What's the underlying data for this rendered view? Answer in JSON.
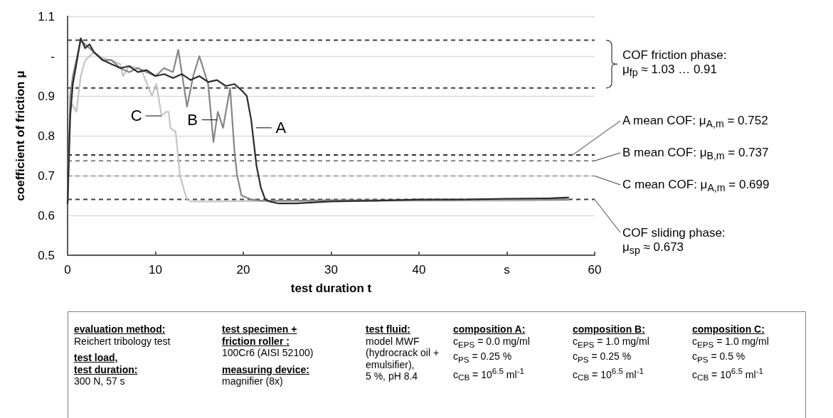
{
  "chart_data": {
    "type": "line",
    "xlabel": "test duration t",
    "ylabel": "coefficient of friction μ",
    "xlim": [
      0,
      60
    ],
    "xticks": [
      0,
      10,
      20,
      30,
      40,
      {
        "value": 50,
        "label": "s"
      },
      60
    ],
    "ylim": [
      0.5,
      1.1
    ],
    "yticks": [
      0.5,
      0.6,
      0.7,
      0.8,
      0.9,
      {
        "value": 1.0,
        "label": "-"
      },
      1.1
    ],
    "grid": "y",
    "legend": false,
    "marker": "none",
    "line_style": "solid",
    "series": [
      {
        "color": "#2b2b2b",
        "x": [
          0,
          0.3,
          0.6,
          1,
          1.5,
          2,
          2.5,
          3,
          4,
          5,
          6,
          7,
          8,
          9,
          10,
          11,
          12,
          13,
          14,
          15,
          16,
          17,
          18,
          19,
          19.5,
          20,
          20.4,
          20.9,
          21.5,
          22,
          22.5,
          23,
          24,
          26,
          30,
          35,
          40,
          45,
          50,
          55,
          57
        ],
        "values": [
          0.63,
          0.85,
          0.93,
          0.98,
          1.045,
          1.02,
          1.03,
          1.01,
          0.99,
          0.98,
          0.97,
          0.975,
          0.96,
          0.965,
          0.95,
          0.955,
          0.945,
          0.955,
          0.94,
          0.95,
          0.935,
          0.94,
          0.925,
          0.93,
          0.92,
          0.91,
          0.9,
          0.84,
          0.725,
          0.67,
          0.64,
          0.635,
          0.63,
          0.63,
          0.635,
          0.637,
          0.64,
          0.64,
          0.642,
          0.643,
          0.645
        ]
      },
      {
        "color": "#858585",
        "x": [
          0,
          0.3,
          0.6,
          1,
          1.5,
          2,
          3,
          4,
          5,
          6,
          7,
          8,
          9,
          10,
          11,
          12,
          12.6,
          13.6,
          14.3,
          15,
          16,
          16.6,
          17.1,
          17.7,
          18.5,
          19,
          19.3,
          19.8,
          20.9,
          22,
          25,
          30,
          40,
          50,
          57
        ],
        "values": [
          0.63,
          0.9,
          0.95,
          0.99,
          1.04,
          1.03,
          1.01,
          0.99,
          0.99,
          0.97,
          0.96,
          0.97,
          0.96,
          0.95,
          0.97,
          0.96,
          1.016,
          0.873,
          0.95,
          1.0,
          0.93,
          0.784,
          0.86,
          0.82,
          0.92,
          0.76,
          0.7,
          0.65,
          0.64,
          0.637,
          0.637,
          0.638,
          0.638,
          0.64,
          0.64
        ]
      },
      {
        "color": "#c4c4c4",
        "x": [
          0,
          0.3,
          0.5,
          1,
          1.5,
          2,
          3,
          4,
          5,
          6,
          6.3,
          7,
          8,
          8.5,
          9.6,
          10.1,
          10.7,
          11.2,
          11.5,
          11.7,
          12.3,
          12.8,
          13.3,
          13.6,
          14,
          16,
          20,
          30,
          40,
          50,
          57
        ],
        "values": [
          0.63,
          0.86,
          0.88,
          0.86,
          0.95,
          0.99,
          1.01,
          0.995,
          0.99,
          0.98,
          0.95,
          0.975,
          0.97,
          0.96,
          0.9,
          0.93,
          0.85,
          0.86,
          0.86,
          0.82,
          0.81,
          0.7,
          0.66,
          0.64,
          0.635,
          0.635,
          0.636,
          0.636,
          0.637,
          0.637,
          0.638
        ]
      }
    ],
    "ref_lines": [
      {
        "axis": "y",
        "value": 1.04,
        "color": "#404040",
        "line_style": "dashed"
      },
      {
        "axis": "y",
        "value": 0.92,
        "color": "#404040",
        "line_style": "dashed"
      },
      {
        "axis": "y",
        "value": 0.752,
        "color": "#333333",
        "line_style": "dashed"
      },
      {
        "axis": "y",
        "value": 0.737,
        "color": "#808080",
        "line_style": "dashed"
      },
      {
        "axis": "y",
        "value": 0.699,
        "color": "#a6a6a6",
        "line_style": "dashed"
      },
      {
        "axis": "y",
        "value": 0.64,
        "color": "#404040",
        "line_style": "dashed"
      }
    ],
    "annotations": [
      {
        "text": "C",
        "x": 10.9,
        "y": 0.85
      },
      {
        "text": "B",
        "x": 17.3,
        "y": 0.84
      },
      {
        "text": "A",
        "x": 21.2,
        "y": 0.82
      },
      "COF friction phase:\nμ$_{fp}$ ≈ 1.03 … 0.91",
      {
        "text": "A mean COF: μ$_{A,m}$ = 0.752",
        "x": 57.5,
        "y": 0.752
      },
      {
        "text": "B mean COF: μ$_{B,m}$ = 0.737",
        "x": 60,
        "y": 0.737
      },
      {
        "text": "C mean COF: μ$_{A,m}$ = 0.699",
        "x": 60,
        "y": 0.699
      },
      {
        "text": "COF sliding phase:\nμ$_{sp}$ ≈ 0.673",
        "x": 60,
        "y": 0.64
      },
      "evaluation method:",
      "Reichert tribology test",
      "test load,\ntest duration:",
      "300 N, 57 s",
      "test specimen +\nfriction roller :",
      "100Cr6 (AISI 52100)",
      "measuring device:",
      "magnifier (8x)",
      "test fluid:",
      "model MWF\n(hydrocrack oil +\nemulsifier),\n5 %, pH 8.4",
      "composition A:",
      "c$_{EPS}$ = 0.0 mg/ml\nc$_{PS}$ = 0.25 %\nc$_{CB}$ = 10$^{6.5}$ ml$^{-1}$",
      "composition B:",
      "c$_{EPS}$ = 1.0 mg/ml\nc$_{PS}$ = 0.25 %\nc$_{CB}$ = 10$^{6.5}$ ml$^{-1}$",
      "composition C:",
      "c$_{EPS}$ = 1.0 mg/ml\nc$_{PS}$ = 0.5 %\nc$_{CB}$ = 10$^{6.5}$ ml$^{-1}$"
    ]
  }
}
